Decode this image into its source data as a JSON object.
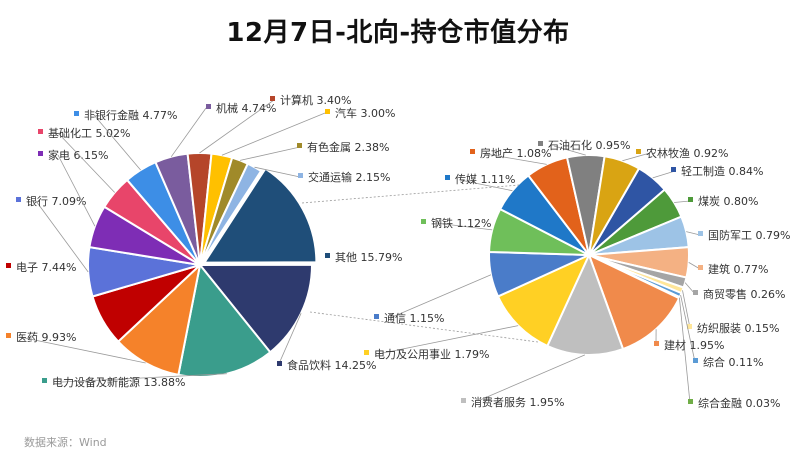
{
  "chart_data": {
    "type": "pie",
    "title": "12月7日-北向-持仓市值分布",
    "source": "数据来源：Wind",
    "main_pie": {
      "slices": [
        {
          "name": "其他",
          "value": 15.79,
          "label": "其他 15.79%",
          "color": "#1F4E79"
        },
        {
          "name": "食品饮料",
          "value": 14.25,
          "label": "食品饮料 14.25%",
          "color": "#2E3A6E"
        },
        {
          "name": "电力设备及新能源",
          "value": 13.88,
          "label": "电力设备及新能源 13.88%",
          "color": "#3A9D8C"
        },
        {
          "name": "医药",
          "value": 9.93,
          "label": "医药 9.93%",
          "color": "#F5822A"
        },
        {
          "name": "电子",
          "value": 7.44,
          "label": "电子 7.44%",
          "color": "#C00000"
        },
        {
          "name": "银行",
          "value": 7.09,
          "label": "银行 7.09%",
          "color": "#5B72D9"
        },
        {
          "name": "家电",
          "value": 6.15,
          "label": "家电 6.15%",
          "color": "#7E2DB5"
        },
        {
          "name": "基础化工",
          "value": 5.02,
          "label": "基础化工 5.02%",
          "color": "#E8456A"
        },
        {
          "name": "非银行金融",
          "value": 4.77,
          "label": "非银行金融 4.77%",
          "color": "#3D8EE6"
        },
        {
          "name": "机械",
          "value": 4.74,
          "label": "机械 4.74%",
          "color": "#7A5C9E"
        },
        {
          "name": "计算机",
          "value": 3.4,
          "label": "计算机 3.40%",
          "color": "#B5452A"
        },
        {
          "name": "汽车",
          "value": 3.0,
          "label": "汽车 3.00%",
          "color": "#FFC000"
        },
        {
          "name": "有色金属",
          "value": 2.38,
          "label": "有色金属 2.38%",
          "color": "#A08A2A"
        },
        {
          "name": "交通运输",
          "value": 2.15,
          "label": "交通运输 2.15%",
          "color": "#8EB4E3"
        }
      ]
    },
    "breakout_pie": {
      "of": "其他",
      "slices": [
        {
          "name": "轻工制造",
          "value": 0.84,
          "label": "轻工制造 0.84%",
          "color": "#2F55A4"
        },
        {
          "name": "煤炭",
          "value": 0.8,
          "label": "煤炭 0.80%",
          "color": "#4E9A3A"
        },
        {
          "name": "国防军工",
          "value": 0.79,
          "label": "国防军工 0.79%",
          "color": "#9DC3E6"
        },
        {
          "name": "建筑",
          "value": 0.77,
          "label": "建筑 0.77%",
          "color": "#F4B183"
        },
        {
          "name": "商贸零售",
          "value": 0.26,
          "label": "商贸零售 0.26%",
          "color": "#A5A5A5"
        },
        {
          "name": "纺织服装",
          "value": 0.15,
          "label": "纺织服装 0.15%",
          "color": "#FFE699"
        },
        {
          "name": "综合",
          "value": 0.11,
          "label": "综合 0.11%",
          "color": "#5B9BD5"
        },
        {
          "name": "综合金融",
          "value": 0.03,
          "label": "综合金融 0.03%",
          "color": "#70AD47"
        },
        {
          "name": "建材",
          "value": 1.95,
          "label": "建材 1.95%",
          "color": "#F08A4B"
        },
        {
          "name": "消费者服务",
          "value": 1.95,
          "label": "消费者服务 1.95%",
          "color": "#BFBFBF"
        },
        {
          "name": "电力及公用事业",
          "value": 1.79,
          "label": "电力及公用事业 1.79%",
          "color": "#FFD024"
        },
        {
          "name": "通信",
          "value": 1.15,
          "label": "通信 1.15%",
          "color": "#4A7CC9"
        },
        {
          "name": "钢铁",
          "value": 1.12,
          "label": "钢铁 1.12%",
          "color": "#6FBF5A"
        },
        {
          "name": "传媒",
          "value": 1.11,
          "label": "传媒 1.11%",
          "color": "#1F78C8"
        },
        {
          "name": "房地产",
          "value": 1.08,
          "label": "房地产 1.08%",
          "color": "#E2621B"
        },
        {
          "name": "石油石化",
          "value": 0.95,
          "label": "石油石化 0.95%",
          "color": "#808080"
        },
        {
          "name": "农林牧渔",
          "value": 0.92,
          "label": "农林牧渔 0.92%",
          "color": "#D9A413"
        }
      ]
    },
    "legend": "none"
  }
}
